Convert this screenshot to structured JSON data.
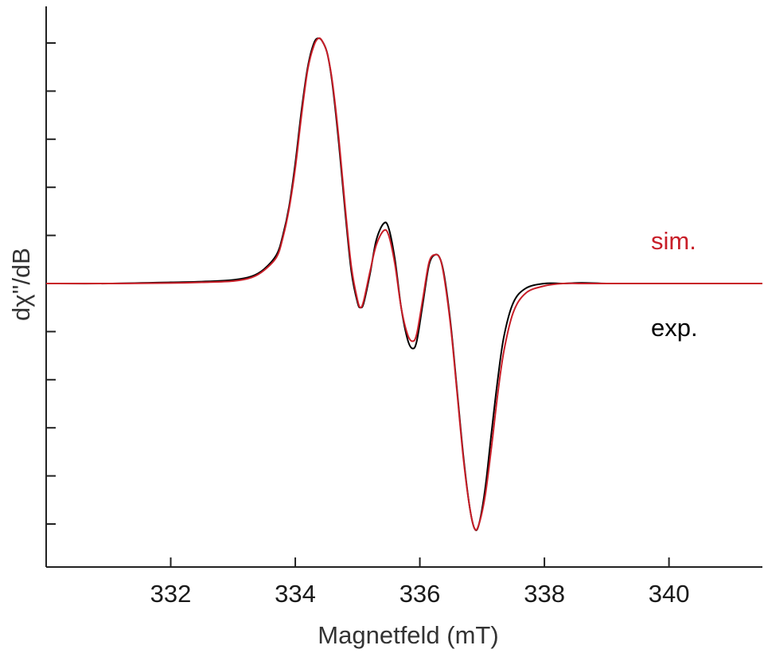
{
  "colors": {
    "exp": "#000000",
    "sim": "#c81e28",
    "axis": "#222222",
    "background": "#ffffff"
  },
  "chart_data": {
    "type": "line",
    "title": "",
    "xlabel": "Magnetfeld (mT)",
    "ylabel": "dχ''/dB",
    "xlim": [
      330,
      341.5
    ],
    "ylim": [
      -1.15,
      1.15
    ],
    "x_ticks": [
      332,
      334,
      336,
      338,
      340
    ],
    "x_tick_labels": [
      "332",
      "334",
      "336",
      "338",
      "340"
    ],
    "y_ticks_labeled": false,
    "grid": false,
    "legend": {
      "placement": "right, inline labels"
    },
    "series": [
      {
        "name": "exp.",
        "color": "#000000",
        "x": [
          330.0,
          331.0,
          332.0,
          332.5,
          333.0,
          333.3,
          333.5,
          333.7,
          333.8,
          333.9,
          334.0,
          334.1,
          334.2,
          334.3,
          334.38,
          334.45,
          334.52,
          334.6,
          334.7,
          334.8,
          334.9,
          335.0,
          335.05,
          335.1,
          335.2,
          335.3,
          335.42,
          335.5,
          335.6,
          335.7,
          335.8,
          335.88,
          335.95,
          336.05,
          336.15,
          336.25,
          336.33,
          336.4,
          336.5,
          336.6,
          336.7,
          336.8,
          336.88,
          336.95,
          337.05,
          337.15,
          337.25,
          337.35,
          337.5,
          337.7,
          338.0,
          338.3,
          338.6,
          339.0,
          339.5,
          340.0,
          341.0,
          341.5
        ],
        "y": [
          0.0,
          0.0,
          0.005,
          0.008,
          0.015,
          0.03,
          0.06,
          0.12,
          0.2,
          0.32,
          0.5,
          0.72,
          0.9,
          1.0,
          1.02,
          1.0,
          0.95,
          0.82,
          0.58,
          0.3,
          0.05,
          -0.08,
          -0.1,
          -0.08,
          0.04,
          0.18,
          0.25,
          0.23,
          0.1,
          -0.1,
          -0.23,
          -0.27,
          -0.24,
          -0.08,
          0.08,
          0.12,
          0.1,
          0.02,
          -0.18,
          -0.45,
          -0.72,
          -0.93,
          -1.02,
          -1.0,
          -0.85,
          -0.62,
          -0.4,
          -0.22,
          -0.08,
          -0.02,
          0.0,
          0.0,
          0.003,
          0.0,
          0.0,
          0.0,
          0.0,
          0.0
        ]
      },
      {
        "name": "sim.",
        "color": "#c81e28",
        "x": [
          330.0,
          331.0,
          332.0,
          332.5,
          333.0,
          333.3,
          333.5,
          333.7,
          333.8,
          333.9,
          334.0,
          334.1,
          334.2,
          334.3,
          334.38,
          334.45,
          334.52,
          334.6,
          334.7,
          334.8,
          334.9,
          335.0,
          335.05,
          335.1,
          335.2,
          335.3,
          335.42,
          335.5,
          335.6,
          335.7,
          335.8,
          335.88,
          335.95,
          336.05,
          336.15,
          336.25,
          336.33,
          336.4,
          336.5,
          336.6,
          336.7,
          336.8,
          336.88,
          336.95,
          337.05,
          337.15,
          337.25,
          337.35,
          337.5,
          337.7,
          338.0,
          338.3,
          338.6,
          339.0,
          339.5,
          340.0,
          341.0,
          341.5
        ],
        "y": [
          0.0,
          0.0,
          0.002,
          0.005,
          0.01,
          0.025,
          0.055,
          0.11,
          0.19,
          0.31,
          0.48,
          0.7,
          0.89,
          0.99,
          1.02,
          1.0,
          0.95,
          0.83,
          0.6,
          0.32,
          0.07,
          -0.07,
          -0.1,
          -0.07,
          0.05,
          0.16,
          0.22,
          0.2,
          0.08,
          -0.1,
          -0.21,
          -0.24,
          -0.21,
          -0.06,
          0.09,
          0.12,
          0.1,
          0.01,
          -0.19,
          -0.46,
          -0.73,
          -0.93,
          -1.02,
          -1.0,
          -0.88,
          -0.68,
          -0.46,
          -0.28,
          -0.12,
          -0.04,
          -0.01,
          0.0,
          0.0,
          0.0,
          0.0,
          0.0,
          0.0,
          0.0
        ]
      }
    ]
  }
}
